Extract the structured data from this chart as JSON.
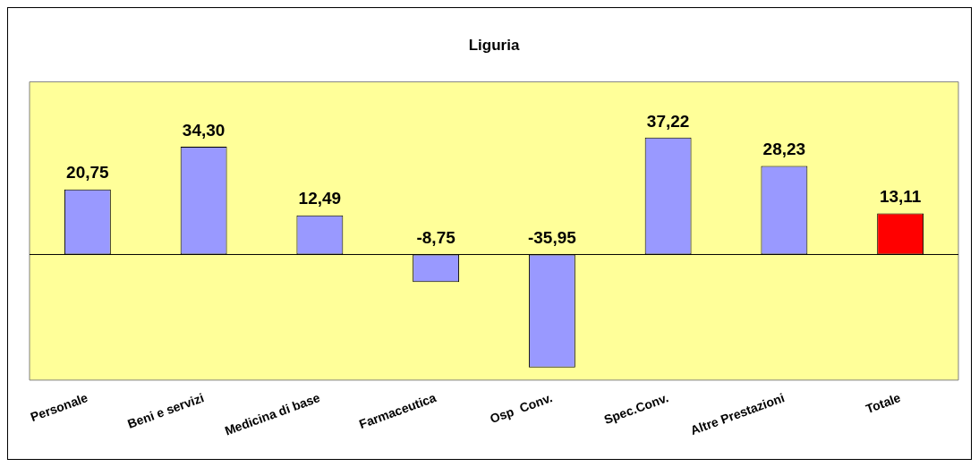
{
  "chart_data": {
    "type": "bar",
    "title": "Liguria",
    "categories": [
      "Personale",
      "Beni e servizi",
      "Medicina di base",
      "Farmaceutica",
      "Osp  Conv.",
      "Spec.Conv.",
      "Altre Prestazioni",
      "Totale"
    ],
    "values": [
      20.75,
      34.3,
      12.49,
      -8.75,
      -35.95,
      37.22,
      28.23,
      13.11
    ],
    "colors": [
      "#9999ff",
      "#9999ff",
      "#9999ff",
      "#9999ff",
      "#9999ff",
      "#9999ff",
      "#9999ff",
      "#ff0000"
    ],
    "value_labels": [
      "20,75",
      "34,30",
      "12,49",
      "-8,75",
      "-35,95",
      "37,22",
      "28,23",
      "13,11"
    ],
    "ylim": [
      -40,
      55
    ],
    "legend": false,
    "grid": false
  }
}
